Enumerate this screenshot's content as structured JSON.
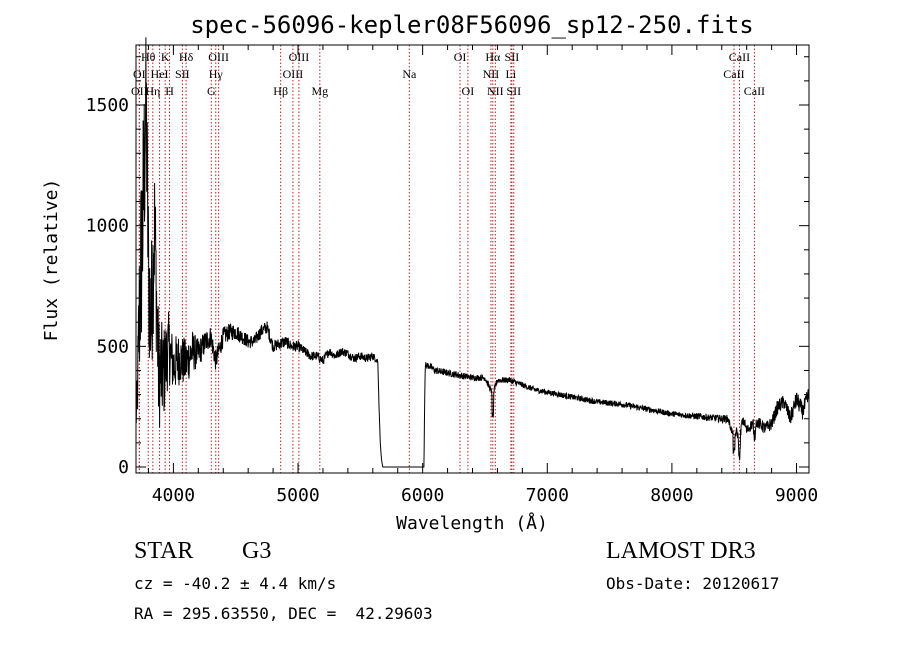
{
  "chart_data": {
    "type": "line",
    "title": "spec-56096-kepler08F56096_sp12-250.fits",
    "xlabel": "Wavelength (Å)",
    "ylabel": "Flux (relative)",
    "xlim": [
      3700,
      9100
    ],
    "ylim": [
      0,
      1800
    ],
    "x_ticks": [
      4000,
      5000,
      6000,
      7000,
      8000,
      9000
    ],
    "y_ticks": [
      0,
      500,
      1000,
      1500
    ],
    "spectrum_envelope": {
      "x": [
        3700,
        3710,
        3730,
        3760,
        3780,
        3800,
        3820,
        3850,
        3880,
        3920,
        3960,
        4000,
        4050,
        4100,
        4150,
        4200,
        4260,
        4300,
        4340,
        4400,
        4450,
        4500,
        4550,
        4600,
        4650,
        4700,
        4750,
        4800,
        4850,
        4900,
        4950,
        5000,
        5050,
        5100,
        5150,
        5200,
        5250,
        5300,
        5350,
        5400,
        5450,
        5500,
        5550,
        5600,
        5640,
        5650,
        5660,
        5670,
        5680,
        5700,
        5900,
        6000,
        6010,
        6020,
        6050,
        6100,
        6200,
        6300,
        6400,
        6500,
        6563,
        6600,
        6700,
        6800,
        6900,
        7000,
        7100,
        7200,
        7300,
        7400,
        7500,
        7600,
        7700,
        7800,
        7900,
        8000,
        8100,
        8200,
        8300,
        8400,
        8450,
        8498,
        8520,
        8542,
        8560,
        8580,
        8600,
        8662,
        8700,
        8750,
        8800,
        8850,
        8900,
        8950,
        9000,
        9050,
        9100
      ],
      "y": [
        200,
        280,
        700,
        1100,
        1550,
        800,
        600,
        1000,
        400,
        380,
        500,
        420,
        450,
        430,
        480,
        470,
        520,
        540,
        440,
        540,
        560,
        560,
        540,
        520,
        520,
        560,
        580,
        500,
        510,
        520,
        500,
        500,
        480,
        460,
        460,
        440,
        480,
        460,
        480,
        470,
        450,
        460,
        450,
        460,
        440,
        250,
        100,
        30,
        0,
        0,
        0,
        0,
        0,
        420,
        420,
        400,
        390,
        380,
        370,
        370,
        300,
        360,
        360,
        340,
        320,
        310,
        300,
        290,
        280,
        270,
        265,
        260,
        250,
        240,
        230,
        220,
        215,
        210,
        205,
        200,
        200,
        120,
        150,
        100,
        180,
        190,
        150,
        190,
        180,
        160,
        180,
        250,
        270,
        200,
        280,
        230,
        300
      ],
      "noise": [
        80,
        120,
        400,
        450,
        350,
        350,
        300,
        300,
        250,
        200,
        150,
        120,
        110,
        100,
        90,
        60,
        50,
        45,
        45,
        40,
        35,
        35,
        30,
        30,
        28,
        28,
        28,
        25,
        25,
        25,
        22,
        22,
        20,
        20,
        20,
        20,
        18,
        18,
        18,
        18,
        18,
        18,
        18,
        18,
        10,
        0,
        0,
        0,
        0,
        0,
        0,
        0,
        0,
        15,
        15,
        15,
        14,
        14,
        13,
        13,
        13,
        13,
        12,
        12,
        12,
        12,
        12,
        12,
        12,
        12,
        12,
        12,
        12,
        12,
        12,
        12,
        12,
        14,
        14,
        16,
        16,
        16,
        18,
        18,
        20,
        20,
        22,
        22,
        24,
        26,
        28,
        30,
        30,
        32,
        35,
        35,
        40
      ]
    },
    "lines": [
      {
        "name": "Hθ",
        "wave": 3798,
        "row": 1
      },
      {
        "name": "OI",
        "wave": 3727,
        "row": 2
      },
      {
        "name": "OII",
        "wave": 3727,
        "row": 3
      },
      {
        "name": "K",
        "wave": 3934,
        "row": 1
      },
      {
        "name": "HeI",
        "wave": 3889,
        "row": 2
      },
      {
        "name": "Hη",
        "wave": 3835,
        "row": 3
      },
      {
        "name": "H",
        "wave": 3969,
        "row": 3
      },
      {
        "name": "Hδ",
        "wave": 4102,
        "row": 1
      },
      {
        "name": "SII",
        "wave": 4072,
        "row": 2
      },
      {
        "name": "OIII",
        "wave": 4363,
        "row": 1
      },
      {
        "name": "Hγ",
        "wave": 4340,
        "row": 2
      },
      {
        "name": "G",
        "wave": 4304,
        "row": 3
      },
      {
        "name": "Hβ",
        "wave": 4861,
        "row": 3
      },
      {
        "name": "OIII",
        "wave": 5007,
        "row": 1
      },
      {
        "name": "OIII",
        "wave": 4959,
        "row": 2
      },
      {
        "name": "Mg",
        "wave": 5175,
        "row": 3
      },
      {
        "name": "Na",
        "wave": 5893,
        "row": 2
      },
      {
        "name": "OI",
        "wave": 6300,
        "row": 1
      },
      {
        "name": "OI",
        "wave": 6363,
        "row": 3
      },
      {
        "name": "Hα",
        "wave": 6563,
        "row": 1
      },
      {
        "name": "SII",
        "wave": 6716,
        "row": 1
      },
      {
        "name": "NII",
        "wave": 6548,
        "row": 2
      },
      {
        "name": "Li",
        "wave": 6708,
        "row": 2
      },
      {
        "name": "NII",
        "wave": 6583,
        "row": 3
      },
      {
        "name": "SII",
        "wave": 6731,
        "row": 3
      },
      {
        "name": "CaII",
        "wave": 8542,
        "row": 1
      },
      {
        "name": "CaII",
        "wave": 8498,
        "row": 2
      },
      {
        "name": "CaII",
        "wave": 8662,
        "row": 3
      }
    ]
  },
  "info": {
    "object_class": "STAR",
    "subclass": "G3",
    "survey": "LAMOST DR3",
    "cz": "cz = -40.2 ± 4.4 km/s",
    "obs_date": "Obs-Date: 20120617",
    "coords": "RA = 295.63550, DEC =  42.29603"
  },
  "colors": {
    "line_marker": "#b22222",
    "spectrum": "#000000",
    "axes": "#000000"
  }
}
